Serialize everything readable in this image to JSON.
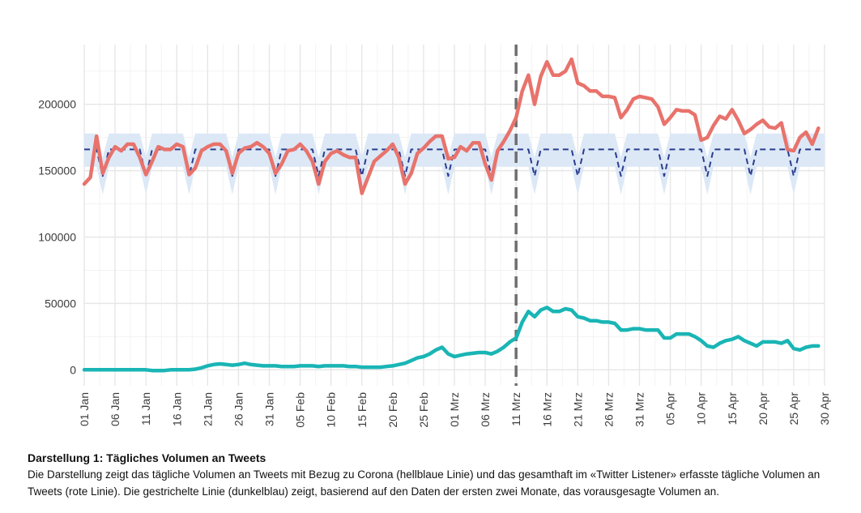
{
  "chart_data": {
    "type": "line",
    "title": "",
    "xlabel": "",
    "ylabel": "",
    "ylim": [
      -12000,
      245000
    ],
    "y_ticks": [
      0,
      50000,
      100000,
      150000,
      200000
    ],
    "y_tick_labels": [
      "0",
      "50000",
      "100000",
      "150000",
      "200000"
    ],
    "x_range_days": [
      0,
      120
    ],
    "x_ticks": [
      {
        "day": 0,
        "label": "01 Jan"
      },
      {
        "day": 5,
        "label": "06 Jan"
      },
      {
        "day": 10,
        "label": "11 Jan"
      },
      {
        "day": 15,
        "label": "16 Jan"
      },
      {
        "day": 20,
        "label": "21 Jan"
      },
      {
        "day": 25,
        "label": "26 Jan"
      },
      {
        "day": 30,
        "label": "31 Jan"
      },
      {
        "day": 35,
        "label": "05 Feb"
      },
      {
        "day": 40,
        "label": "10 Feb"
      },
      {
        "day": 45,
        "label": "15 Feb"
      },
      {
        "day": 50,
        "label": "20 Feb"
      },
      {
        "day": 55,
        "label": "25 Feb"
      },
      {
        "day": 60,
        "label": "01 Mrz"
      },
      {
        "day": 65,
        "label": "06 Mrz"
      },
      {
        "day": 70,
        "label": "11 Mrz"
      },
      {
        "day": 75,
        "label": "16 Mrz"
      },
      {
        "day": 80,
        "label": "21 Mrz"
      },
      {
        "day": 85,
        "label": "26 Mrz"
      },
      {
        "day": 90,
        "label": "31 Mrz"
      },
      {
        "day": 95,
        "label": "05 Apr"
      },
      {
        "day": 100,
        "label": "10 Apr"
      },
      {
        "day": 105,
        "label": "15 Apr"
      },
      {
        "day": 110,
        "label": "20 Apr"
      },
      {
        "day": 115,
        "label": "25 Apr"
      },
      {
        "day": 120,
        "label": "30 Apr"
      }
    ],
    "grid": true,
    "vline_day": 70,
    "forecast_band": {
      "weekday_low": 153000,
      "weekday_high": 178000,
      "weekend_low": 132000,
      "weekend_high": 160000,
      "dip_days": [
        3,
        10,
        17,
        24,
        31,
        38,
        45,
        52,
        59,
        66,
        73,
        80,
        87,
        94,
        101,
        108,
        115
      ]
    },
    "series": [
      {
        "color": "#e8736c",
        "values": [
          140000,
          145000,
          176000,
          148000,
          160000,
          168000,
          165000,
          170000,
          170000,
          160000,
          147000,
          157000,
          168000,
          166000,
          166000,
          170000,
          168000,
          147000,
          152000,
          165000,
          168000,
          170000,
          170000,
          165000,
          148000,
          163000,
          167000,
          168000,
          171000,
          168000,
          163000,
          148000,
          155000,
          165000,
          166000,
          170000,
          165000,
          157000,
          140000,
          157000,
          163000,
          165000,
          162000,
          160000,
          160000,
          133000,
          145000,
          157000,
          161000,
          165000,
          170000,
          160000,
          140000,
          148000,
          163000,
          167000,
          172000,
          176000,
          176000,
          159000,
          160000,
          168000,
          165000,
          171000,
          171000,
          155000,
          143000,
          165000,
          172000,
          180000,
          190000,
          210000,
          222000,
          200000,
          221000,
          232000,
          222000,
          222000,
          225000,
          234000,
          216000,
          214000,
          210000,
          210000,
          206000,
          206000,
          205000,
          190000,
          196000,
          204000,
          206000,
          205000,
          204000,
          198000,
          185000,
          190000,
          196000,
          195000,
          195000,
          192000,
          173000,
          175000,
          184000,
          191000,
          189000,
          196000,
          188000,
          178000,
          181000,
          185000,
          188000,
          183000,
          182000,
          186000,
          166000,
          165000,
          175000,
          179000,
          170000,
          182000
        ]
      },
      {
        "color": "#1ab5b5",
        "values": [
          0,
          0,
          0,
          0,
          0,
          0,
          0,
          0,
          0,
          0,
          0,
          -500,
          -500,
          -500,
          0,
          0,
          0,
          0,
          500,
          1500,
          3000,
          4000,
          4500,
          4000,
          3500,
          4000,
          5000,
          4000,
          3500,
          3000,
          3000,
          3000,
          2500,
          2500,
          2500,
          3000,
          3000,
          3000,
          2500,
          3000,
          3000,
          3000,
          3000,
          2500,
          2500,
          2000,
          2000,
          2000,
          2000,
          2500,
          3000,
          4000,
          5000,
          7000,
          9000,
          10000,
          12000,
          15000,
          17000,
          12000,
          10000,
          11000,
          12000,
          12500,
          13000,
          13000,
          12000,
          14000,
          17000,
          21000,
          24000,
          36000,
          44000,
          40000,
          45000,
          47000,
          44000,
          44000,
          46000,
          45000,
          40000,
          39000,
          37000,
          37000,
          36000,
          36000,
          35000,
          30000,
          30000,
          31000,
          31000,
          30000,
          30000,
          30000,
          24000,
          24000,
          27000,
          27000,
          27000,
          25000,
          22000,
          18000,
          17000,
          20000,
          22000,
          23000,
          25000,
          22000,
          20000,
          18000,
          21000,
          21000,
          21000,
          20000,
          22000,
          16000,
          15000,
          17000,
          18000,
          18000
        ]
      }
    ],
    "forecast_line": {
      "color": "#2b3c8e",
      "weekday": 166000,
      "weekend": 146000
    }
  },
  "caption": {
    "title": "Darstellung 1: Tägliches Volumen an Tweets",
    "text": "Die Darstellung zeigt das tägliche Volumen an Tweets mit Bezug zu Corona (hellblaue Linie) und das gesamthaft im «Twitter Listener» erfasste tägliche Volumen an Tweets (rote Linie). Die gestrichelte Linie (dunkelblau) zeigt, basierend auf den Daten der ersten zwei Monate, das vorausgesagte Volumen an."
  }
}
